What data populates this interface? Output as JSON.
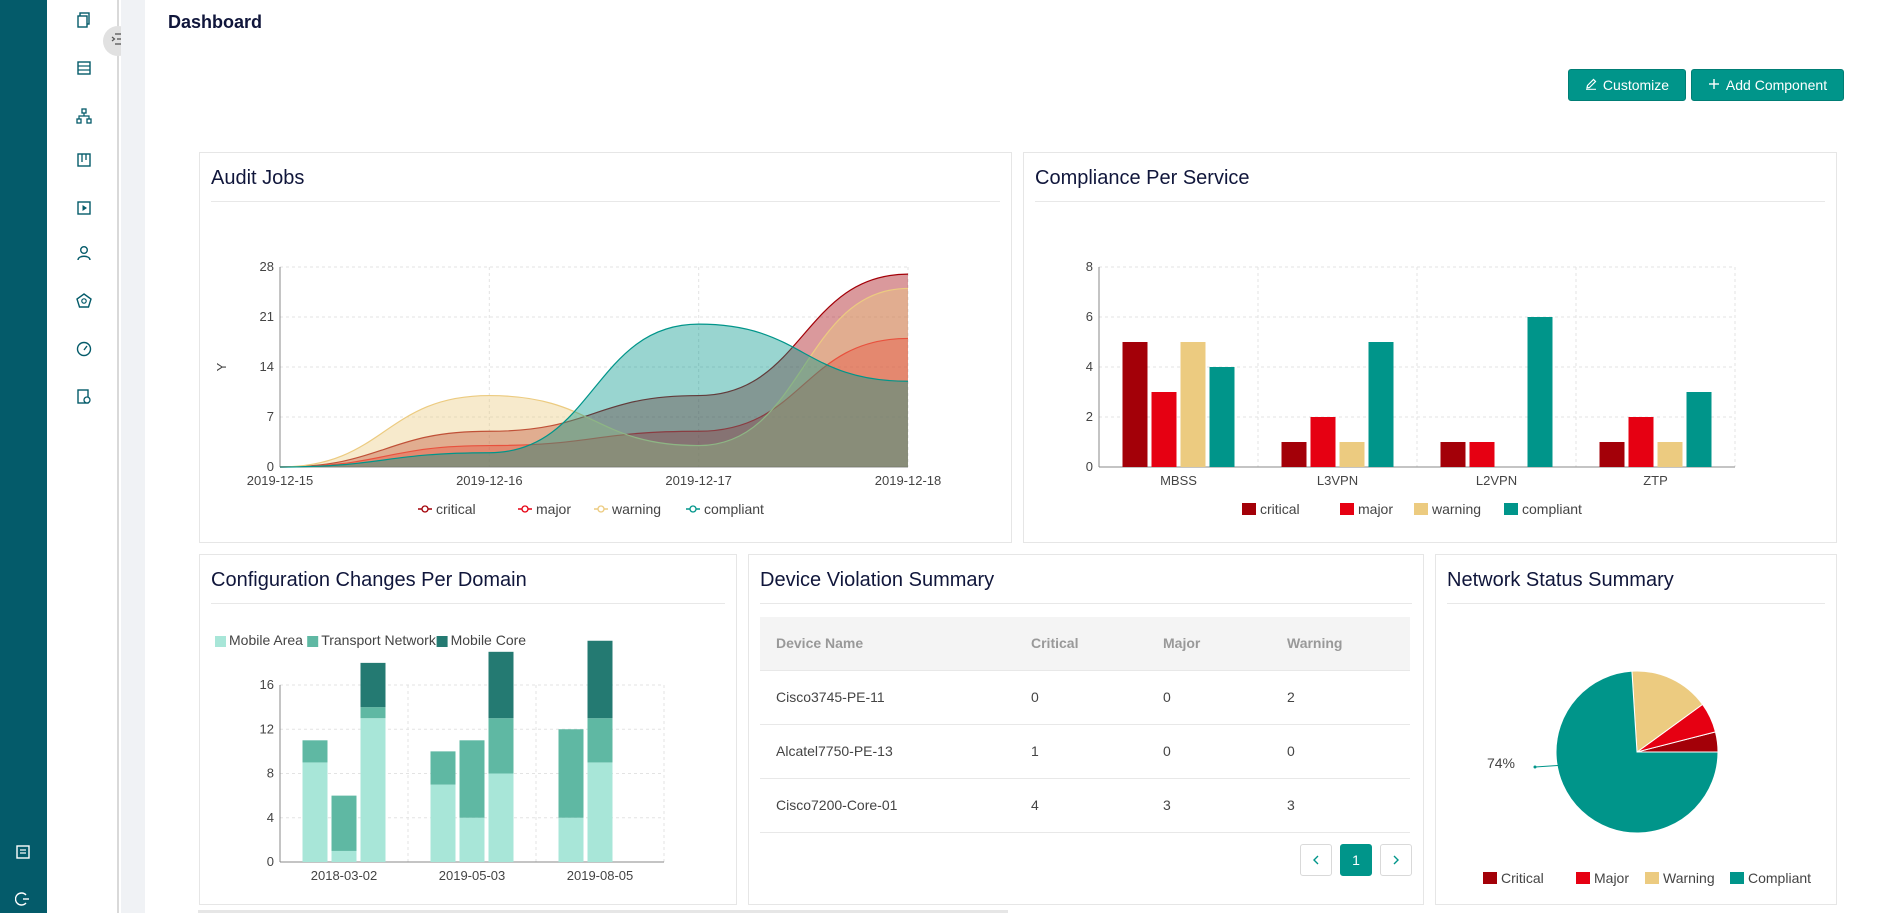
{
  "page": {
    "title": "Dashboard"
  },
  "toolbar": {
    "customize_label": "Customize",
    "add_component_label": "Add Component"
  },
  "rail": {
    "icons": [
      "report-icon",
      "logout-icon"
    ]
  },
  "sidebar": {
    "icons": [
      "copy-icon",
      "table-icon",
      "topology-icon",
      "kanban-icon",
      "play-icon",
      "user-icon",
      "compliance-icon",
      "dashboard-gauge-icon",
      "audit-report-icon"
    ]
  },
  "colors": {
    "critical": "#a30008",
    "major": "#e60012",
    "warning": "#eccb80",
    "compliant": "#00958a",
    "accent": "#00958a",
    "rail": "#045b6a"
  },
  "cards": {
    "audit_jobs": {
      "title": "Audit Jobs"
    },
    "compliance": {
      "title": "Compliance Per Service"
    },
    "config_changes": {
      "title": "Configuration Changes Per Domain"
    },
    "violations": {
      "title": "Device Violation Summary",
      "columns": [
        "Device Name",
        "Critical",
        "Major",
        "Warning"
      ],
      "rows": [
        [
          "Cisco3745-PE-11",
          "0",
          "0",
          "2"
        ],
        [
          "Alcatel7750-PE-13",
          "1",
          "0",
          "0"
        ],
        [
          "Cisco7200-Core-01",
          "4",
          "3",
          "3"
        ]
      ],
      "pagination": {
        "current": "1"
      }
    },
    "network": {
      "title": "Network Status Summary"
    }
  },
  "chart_data": [
    {
      "id": "audit_jobs",
      "type": "area",
      "x": [
        "2019-12-15",
        "2019-12-16",
        "2019-12-17",
        "2019-12-18"
      ],
      "ylabel": "Y",
      "ylim": [
        0,
        28
      ],
      "yticks": [
        0,
        7,
        14,
        21,
        28
      ],
      "grid": true,
      "legend": "bottom",
      "series": [
        {
          "name": "critical",
          "color": "#a30008",
          "values": [
            0,
            5,
            10,
            27
          ]
        },
        {
          "name": "major",
          "color": "#e60012",
          "values": [
            0,
            3,
            5,
            18
          ]
        },
        {
          "name": "warning",
          "color": "#eccb80",
          "values": [
            0,
            10,
            3,
            25
          ]
        },
        {
          "name": "compliant",
          "color": "#00958a",
          "values": [
            0,
            2,
            20,
            12
          ]
        }
      ]
    },
    {
      "id": "compliance",
      "type": "bar",
      "categories": [
        "MBSS",
        "L3VPN",
        "L2VPN",
        "ZTP"
      ],
      "ylim": [
        0,
        8
      ],
      "yticks": [
        0,
        2,
        4,
        6,
        8
      ],
      "grid": true,
      "legend": "bottom",
      "series": [
        {
          "name": "critical",
          "color": "#a30008",
          "values": [
            5,
            1,
            1,
            1
          ]
        },
        {
          "name": "major",
          "color": "#e60012",
          "values": [
            3,
            2,
            1,
            2
          ]
        },
        {
          "name": "warning",
          "color": "#eccb80",
          "values": [
            5,
            1,
            0,
            1
          ]
        },
        {
          "name": "compliant",
          "color": "#00958a",
          "values": [
            4,
            5,
            6,
            3
          ]
        }
      ]
    },
    {
      "id": "config_changes",
      "type": "bar",
      "stacked": true,
      "ylim": [
        0,
        16
      ],
      "yticks": [
        0,
        4,
        8,
        12,
        16
      ],
      "xticklabels": [
        "2018-03-02",
        "2019-05-03",
        "2019-08-05"
      ],
      "grid": true,
      "legend": "top-left",
      "series_names": [
        "Mobile Area",
        "Transport Network",
        "Mobile Core"
      ],
      "series_colors": [
        "#a8e6d8",
        "#5fb8a3",
        "#247a72"
      ],
      "groups": [
        {
          "label": "2018-03-02",
          "bars": [
            [
              9,
              2,
              0
            ],
            [
              1,
              5,
              0
            ],
            [
              13,
              1,
              4
            ]
          ]
        },
        {
          "label": "2019-05-03",
          "bars": [
            [
              7,
              3,
              0
            ],
            [
              4,
              7,
              0
            ],
            [
              8,
              5,
              6
            ]
          ]
        },
        {
          "label": "2019-08-05",
          "bars": [
            [
              4,
              8,
              0
            ],
            [
              9,
              4,
              7
            ],
            [
              0,
              0,
              0
            ]
          ]
        }
      ]
    },
    {
      "id": "network",
      "type": "pie",
      "legend": "bottom",
      "slices": [
        {
          "name": "Critical",
          "color": "#a30008",
          "value": 4
        },
        {
          "name": "Major",
          "color": "#e60012",
          "value": 6
        },
        {
          "name": "Warning",
          "color": "#eccb80",
          "value": 16
        },
        {
          "name": "Compliant",
          "color": "#00958a",
          "value": 74
        }
      ],
      "labels": [
        "74%"
      ]
    }
  ]
}
